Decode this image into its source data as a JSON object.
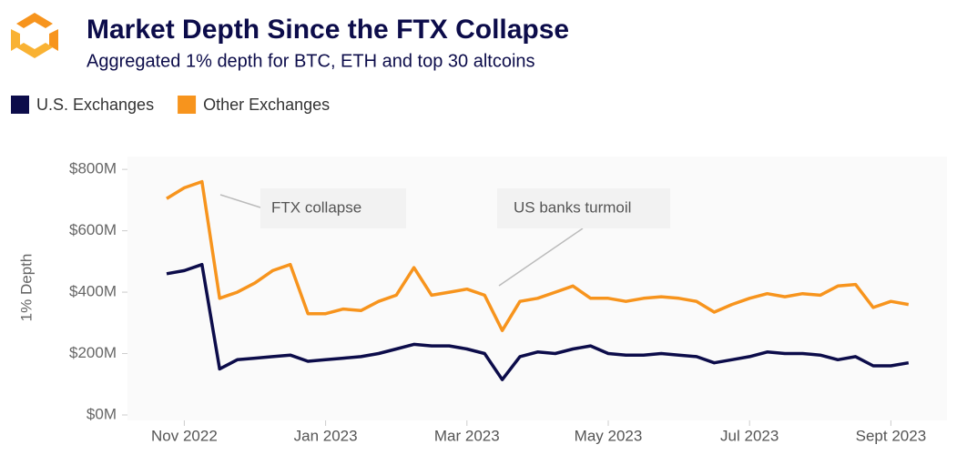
{
  "chart_data": {
    "type": "line",
    "title": "Market Depth Since the FTX Collapse",
    "subtitle": "Aggregated 1% depth for BTC, ETH and top 30 altcoins",
    "y_label": "1% Depth",
    "categories": [
      null,
      "Nov 2022",
      null,
      null,
      null,
      null,
      null,
      null,
      null,
      "Jan 2023",
      null,
      null,
      null,
      null,
      null,
      null,
      null,
      "Mar 2023",
      null,
      null,
      null,
      null,
      null,
      null,
      null,
      "May 2023",
      null,
      null,
      null,
      null,
      null,
      null,
      null,
      "Jul 2023",
      null,
      null,
      null,
      null,
      null,
      null,
      null,
      "Sept 2023",
      null
    ],
    "series": [
      {
        "name": "U.S. Exchanges",
        "color": "#0c0c4a",
        "values": [
          460,
          470,
          490,
          150,
          180,
          185,
          190,
          195,
          175,
          180,
          185,
          190,
          200,
          215,
          230,
          225,
          225,
          215,
          200,
          115,
          190,
          205,
          200,
          215,
          225,
          200,
          195,
          195,
          200,
          195,
          190,
          170,
          180,
          190,
          205,
          200,
          200,
          195,
          180,
          190,
          160,
          160,
          170
        ]
      },
      {
        "name": "Other Exchanges",
        "color": "#f7941d",
        "values": [
          705,
          740,
          760,
          380,
          400,
          430,
          470,
          490,
          330,
          330,
          345,
          340,
          370,
          390,
          480,
          390,
          400,
          410,
          390,
          275,
          370,
          380,
          400,
          420,
          380,
          380,
          370,
          380,
          385,
          380,
          370,
          335,
          360,
          380,
          395,
          385,
          395,
          390,
          420,
          425,
          350,
          370,
          360
        ]
      }
    ],
    "annotations": [
      "FTX collapse",
      "US banks turmoil"
    ],
    "ylim": [
      0,
      830
    ],
    "yticks": [
      {
        "value": 0,
        "label": "$0M"
      },
      {
        "value": 200,
        "label": "$200M"
      },
      {
        "value": 400,
        "label": "$400M"
      },
      {
        "value": 600,
        "label": "$600M"
      },
      {
        "value": 800,
        "label": "$800M"
      }
    ],
    "legend": "top-left"
  }
}
